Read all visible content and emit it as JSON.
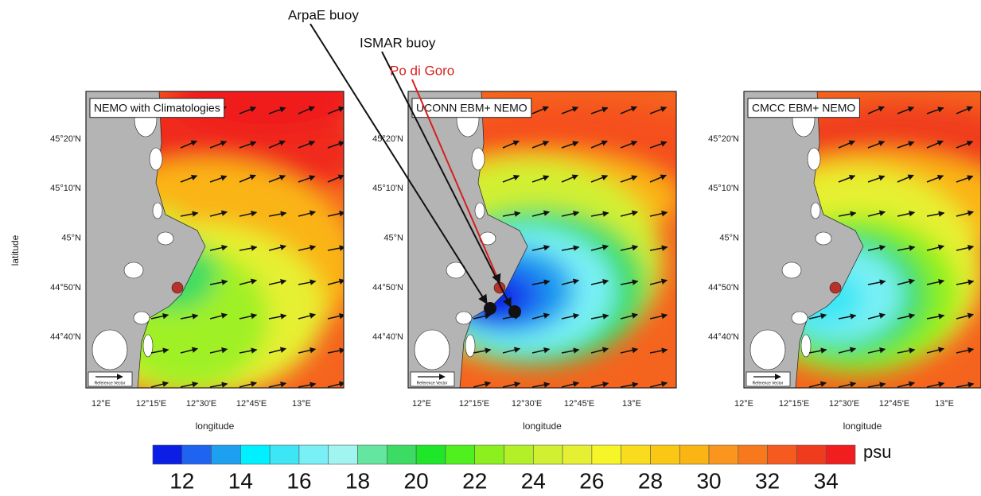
{
  "annotations": [
    {
      "label": "ArpaE buoy",
      "color": "#111111"
    },
    {
      "label": "ISMAR buoy",
      "color": "#111111"
    },
    {
      "label": "Po di Goro",
      "color": "#d62020"
    }
  ],
  "panels": [
    {
      "title": "NEMO with Climatologies"
    },
    {
      "title": "UCONN EBM+ NEMO"
    },
    {
      "title": "CMCC EBM+ NEMO"
    }
  ],
  "axes": {
    "x_label": "longitude",
    "y_label": "latitude",
    "x_ticks": [
      "12°E",
      "12°15'E",
      "12°30'E",
      "12°45'E",
      "13°E"
    ],
    "y_ticks": [
      "45°20'N",
      "45°10'N",
      "45°N",
      "44°50'N",
      "44°40'N"
    ]
  },
  "reference_vector": "Reference Vector",
  "colorbar": {
    "unit": "psu",
    "range": [
      11,
      35
    ],
    "ticks": [
      12,
      14,
      16,
      18,
      20,
      22,
      24,
      26,
      28,
      30,
      32,
      34
    ],
    "colors": [
      "#0a1ee6",
      "#1e64f0",
      "#1ea0f0",
      "#00f0ff",
      "#3ce6f5",
      "#78f0f5",
      "#a0f5f0",
      "#64e6a0",
      "#3cdc64",
      "#1ee628",
      "#50f01e",
      "#8cf01e",
      "#b4f028",
      "#d2f032",
      "#e6f032",
      "#f5f528",
      "#fadc1e",
      "#fac814",
      "#fab414",
      "#fa961e",
      "#f8781e",
      "#f55a1e",
      "#f03c1e",
      "#f01e1e"
    ]
  }
}
